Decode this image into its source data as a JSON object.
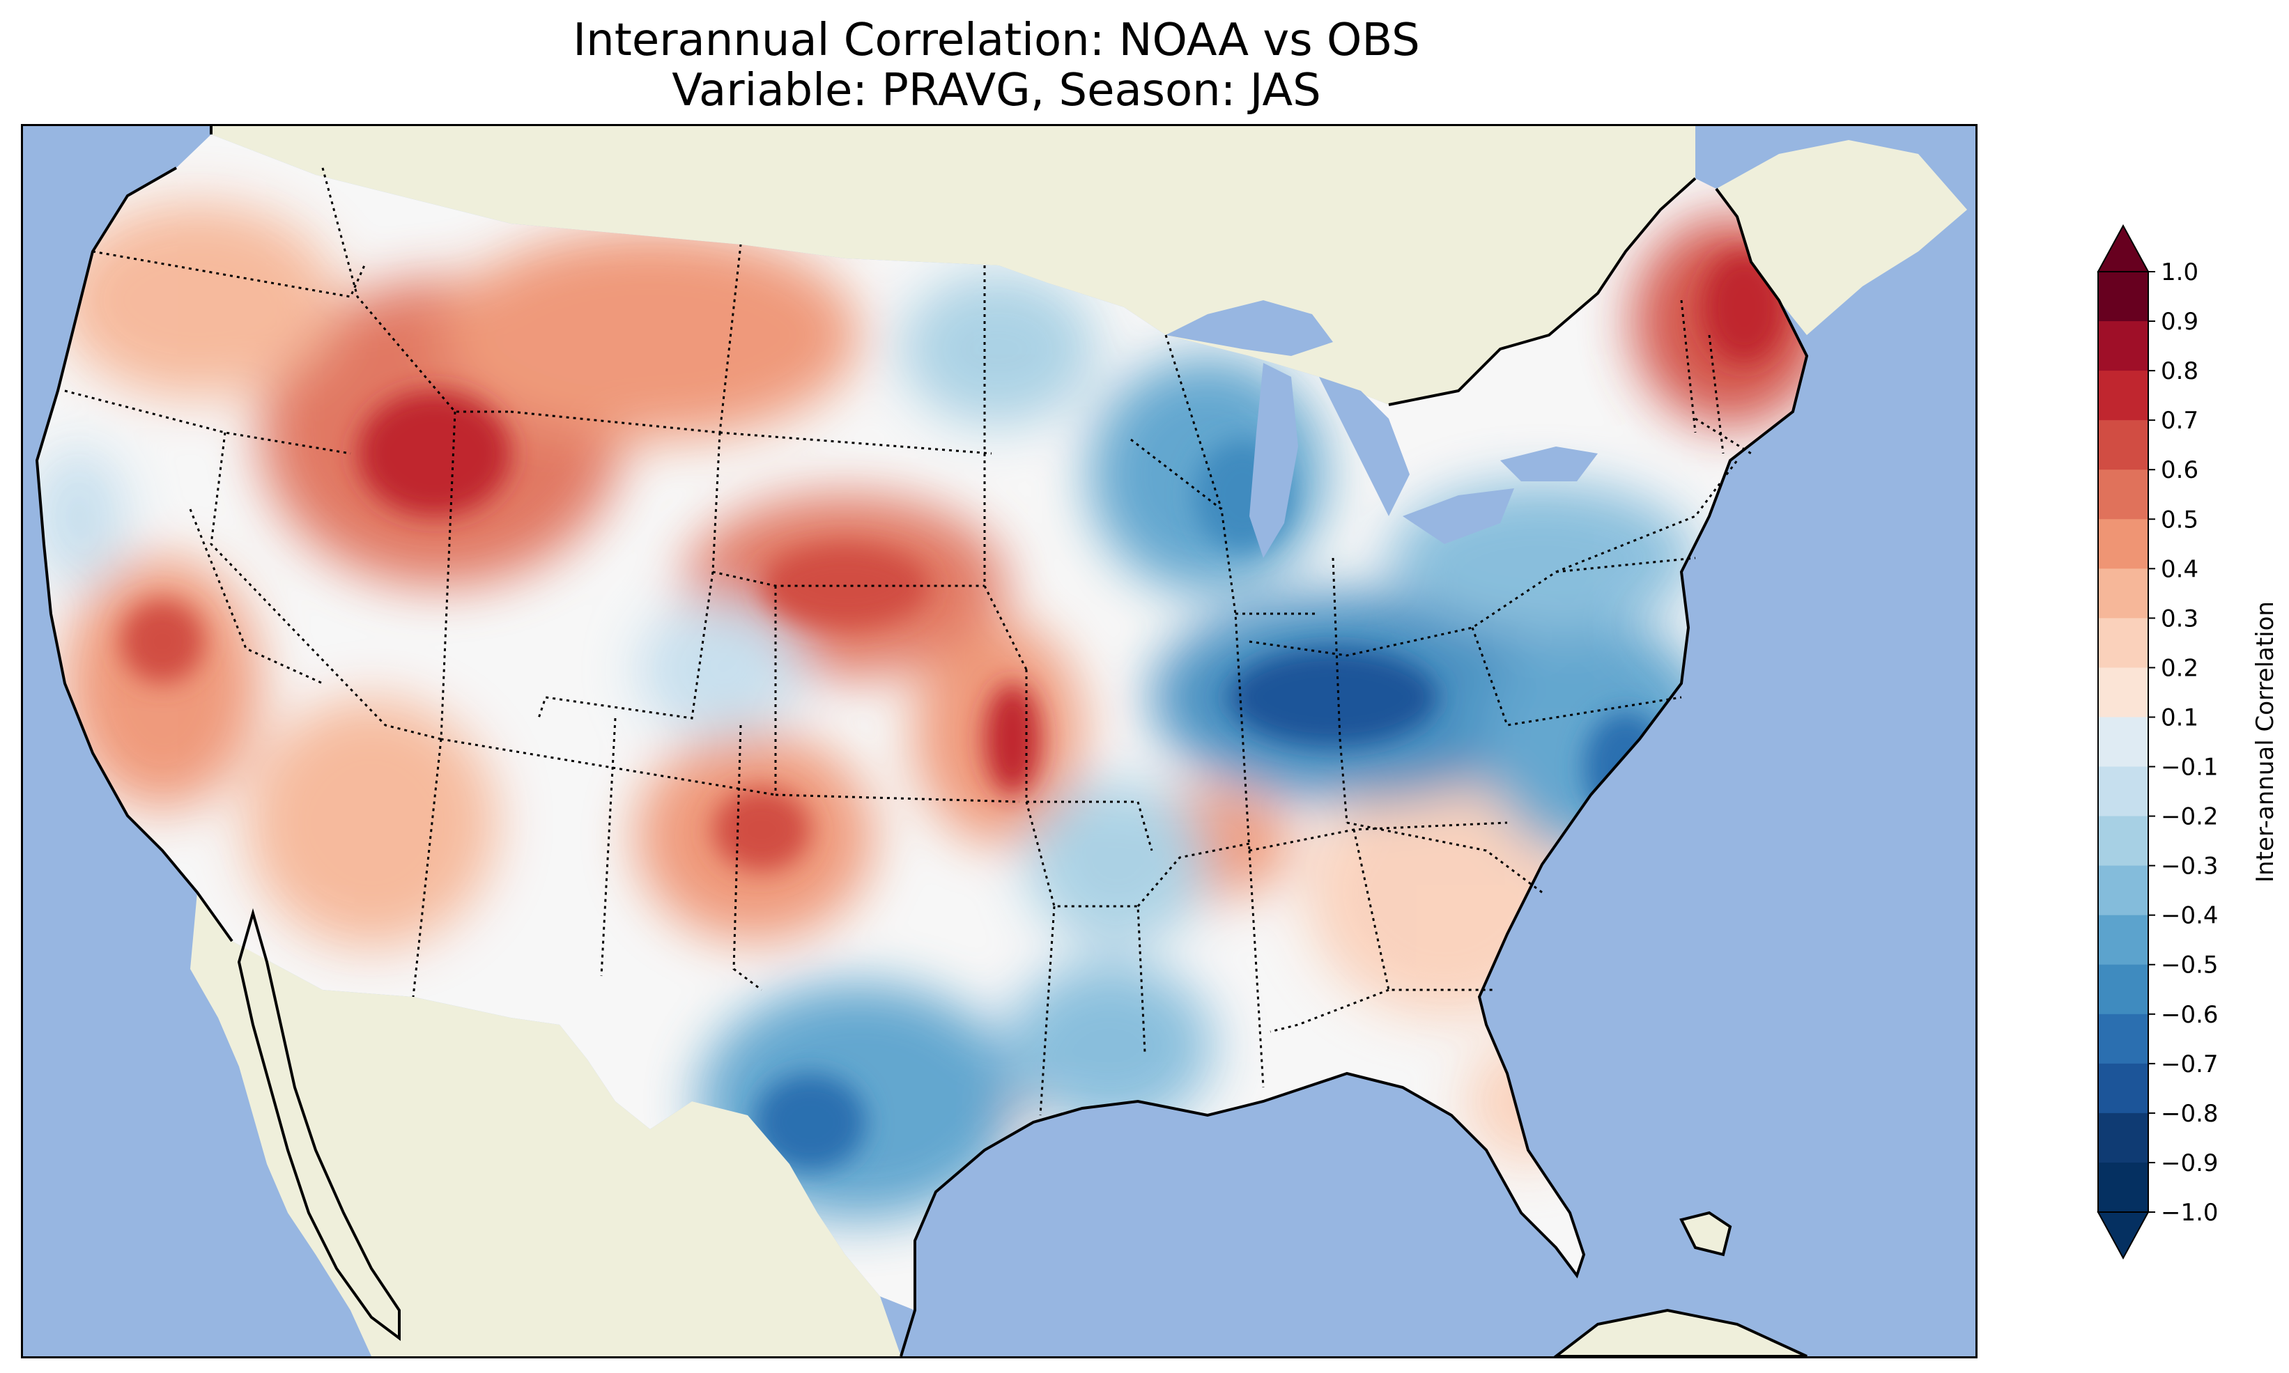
{
  "title_line1": "Interannual Correlation: NOAA vs OBS",
  "title_line2": "Variable: PRAVG, Season: JAS",
  "colors": {
    "ocean": "#97b6e1",
    "land": "#efefdb",
    "lakes": "#97b6e1",
    "borders": "#000000"
  },
  "colorbar": {
    "label": "Inter-annual Correlation",
    "ticks": [
      "1.0",
      "0.9",
      "0.8",
      "0.7",
      "0.6",
      "0.5",
      "0.4",
      "0.3",
      "0.2",
      "0.1",
      "−0.1",
      "−0.2",
      "−0.3",
      "−0.4",
      "−0.5",
      "−0.6",
      "−0.7",
      "−0.8",
      "−0.9",
      "−1.0"
    ],
    "bands": [
      "#67001f",
      "#9f0f28",
      "#c0262f",
      "#d14d43",
      "#e0725b",
      "#ef9574",
      "#f6b799",
      "#fad1bb",
      "#fbe4d6",
      "#f7f7f7",
      "#dfebf3",
      "#c6dfee",
      "#a7d0e4",
      "#84bcdb",
      "#5ca3cd",
      "#3f8bbf",
      "#2b6fb0",
      "#1c5599",
      "#0f3b73",
      "#053061"
    ]
  },
  "chart_data": {
    "type": "heatmap",
    "title": "Interannual Correlation: NOAA vs OBS",
    "subtitle": "Variable: PRAVG, Season: JAS",
    "colorbar_label": "Inter-annual Correlation",
    "value_range": [
      -1.0,
      1.0
    ],
    "levels": [
      -1.0,
      -0.9,
      -0.8,
      -0.7,
      -0.6,
      -0.5,
      -0.4,
      -0.3,
      -0.2,
      -0.1,
      0.1,
      0.2,
      0.3,
      0.4,
      0.5,
      0.6,
      0.7,
      0.8,
      0.9,
      1.0
    ],
    "regions": [
      {
        "name": "Pacific Northwest coast",
        "value": 0.3
      },
      {
        "name": "Idaho / Wyoming / Utah",
        "value": 0.6
      },
      {
        "name": "Montana",
        "value": 0.5
      },
      {
        "name": "Nebraska / Kansas",
        "value": 0.6
      },
      {
        "name": "Eastern Kansas / Missouri",
        "value": 0.6
      },
      {
        "name": "Central California",
        "value": 0.5
      },
      {
        "name": "Arizona / New Mexico",
        "value": 0.4
      },
      {
        "name": "Ohio Valley / Kentucky",
        "value": -0.7
      },
      {
        "name": "Virginia / North Carolina",
        "value": -0.6
      },
      {
        "name": "Wisconsin / Michigan",
        "value": -0.5
      },
      {
        "name": "Pennsylvania / New York",
        "value": -0.5
      },
      {
        "name": "Texas",
        "value": -0.6
      },
      {
        "name": "Maine / New England",
        "value": 0.7
      },
      {
        "name": "Southeast Georgia / Florida",
        "value": 0.3
      },
      {
        "name": "Louisiana / Mississippi",
        "value": -0.4
      }
    ]
  }
}
